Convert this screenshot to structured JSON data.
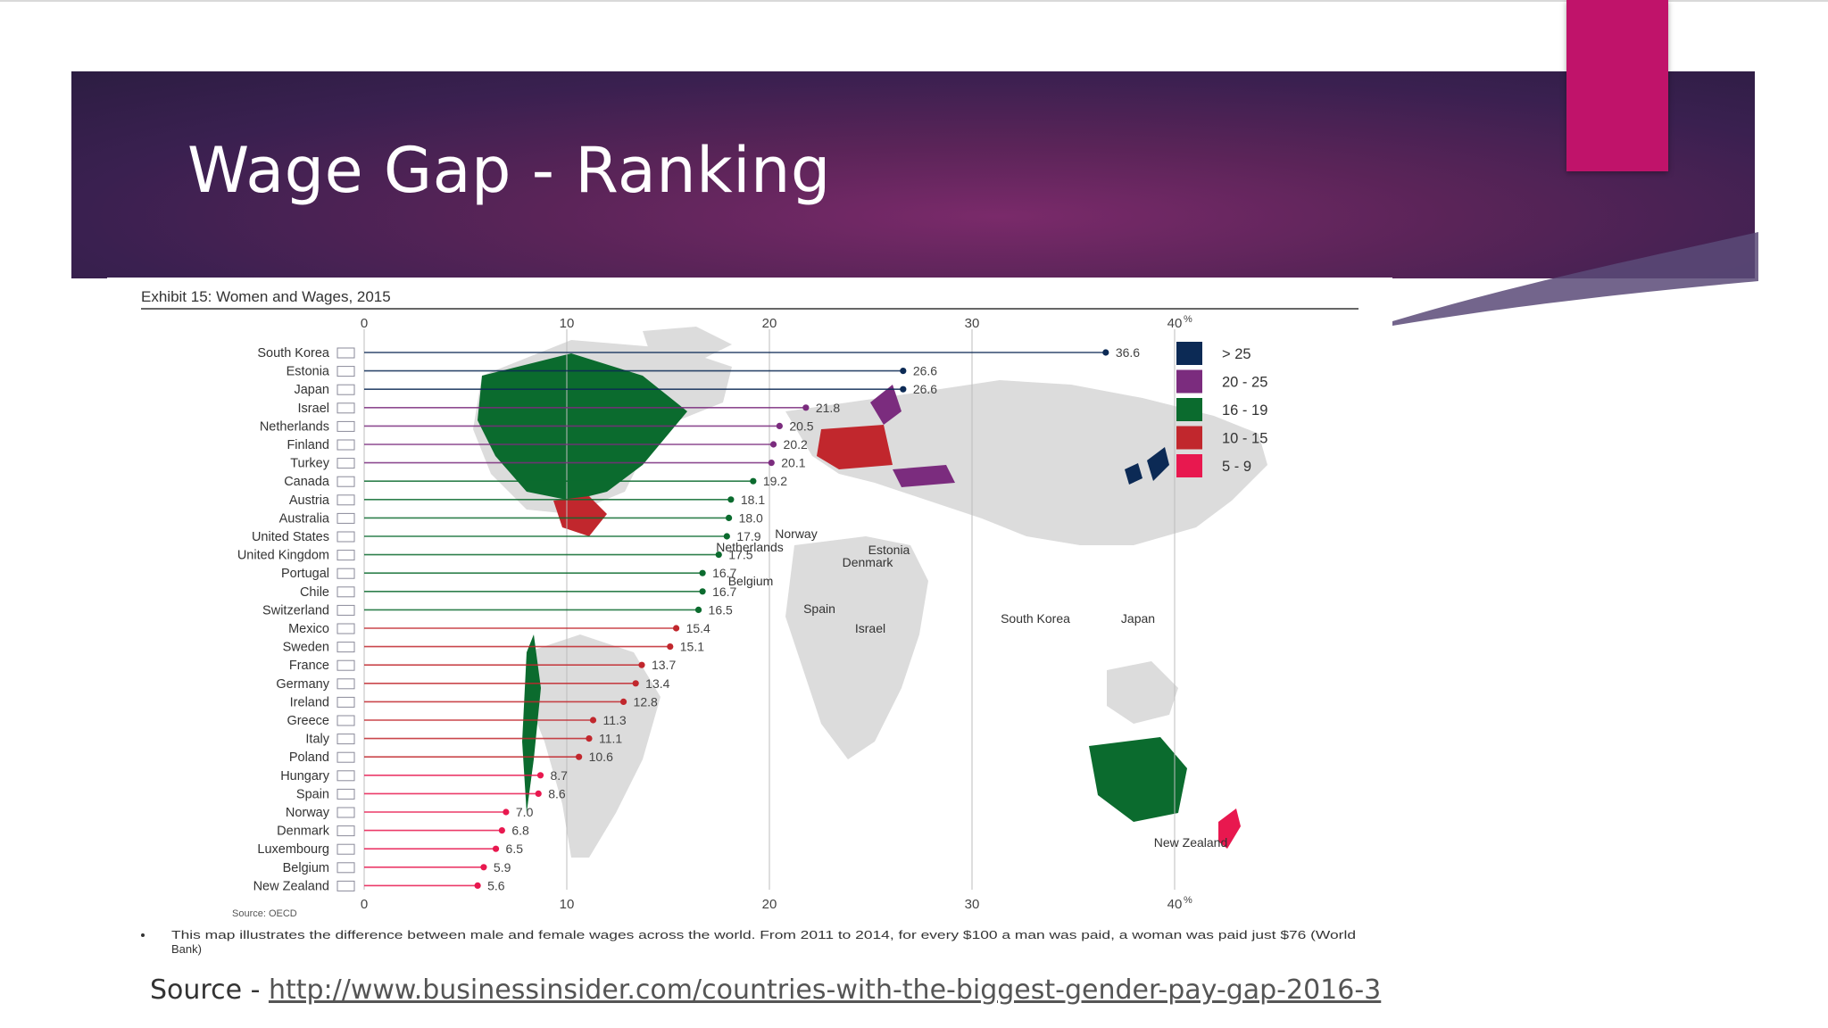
{
  "slide": {
    "title": "Wage Gap - Ranking",
    "source_prefix": "Source - ",
    "source_url": "http://www.businessinsider.com/countries-with-the-biggest-gender-pay-gap-2016-3"
  },
  "colors": {
    "banner": "#3a2050",
    "accent": "#c0136a",
    "navy": "#0c2a55",
    "purple": "#7b2c7e",
    "green": "#0b6b2e",
    "red": "#c1272d",
    "pink": "#e8184f",
    "map_land": "#dcdcdc"
  },
  "chart_data": {
    "type": "bar",
    "title": "Exhibit 15: Women and Wages, 2015",
    "source_note": "Source: OECD",
    "footnote": "This map illustrates the difference between male and female wages across the world. From 2011 to 2014, for every $100 a man was paid, a woman was paid just $76 (World Bank)",
    "xlim": [
      0,
      40
    ],
    "ticks": [
      "0",
      "10",
      "20",
      "30",
      "40"
    ],
    "unit": "%",
    "categories": [
      "South Korea",
      "Estonia",
      "Japan",
      "Israel",
      "Netherlands",
      "Finland",
      "Turkey",
      "Canada",
      "Austria",
      "Australia",
      "United States",
      "United Kingdom",
      "Portugal",
      "Chile",
      "Switzerland",
      "Mexico",
      "Sweden",
      "France",
      "Germany",
      "Ireland",
      "Greece",
      "Italy",
      "Poland",
      "Hungary",
      "Spain",
      "Norway",
      "Denmark",
      "Luxembourg",
      "Belgium",
      "New Zealand"
    ],
    "values": [
      36.6,
      26.6,
      26.6,
      21.8,
      20.5,
      20.2,
      20.1,
      19.2,
      18.1,
      18.0,
      17.9,
      17.5,
      16.7,
      16.7,
      16.5,
      15.4,
      15.1,
      13.7,
      13.4,
      12.8,
      11.3,
      11.1,
      10.6,
      8.7,
      8.6,
      7.0,
      6.8,
      6.5,
      5.9,
      5.6
    ],
    "value_labels": [
      "36.6",
      "26.6",
      "26.6",
      "21.8",
      "20.5",
      "20.2",
      "20.1",
      "19.2",
      "18.1",
      "18.0",
      "17.9",
      "17.5",
      "16.7",
      "16.7",
      "16.5",
      "15.4",
      "15.1",
      "13.7",
      "13.4",
      "12.8",
      "11.3",
      "11.1",
      "10.6",
      "8.7",
      "8.6",
      "7.0",
      "6.8",
      "6.5",
      "5.9",
      "5.6"
    ],
    "legend": [
      {
        "label": "> 25",
        "color": "#0c2a55"
      },
      {
        "label": "20 - 25",
        "color": "#7b2c7e"
      },
      {
        "label": "16 - 19",
        "color": "#0b6b2e"
      },
      {
        "label": "10 - 15",
        "color": "#c1272d"
      },
      {
        "label": "5 - 9",
        "color": "#e8184f"
      }
    ],
    "legend_position": "top-right",
    "map_labels": [
      "Norway",
      "Netherlands",
      "Estonia",
      "Denmark",
      "Belgium",
      "Spain",
      "Israel",
      "South Korea",
      "Japan",
      "New Zealand"
    ]
  }
}
